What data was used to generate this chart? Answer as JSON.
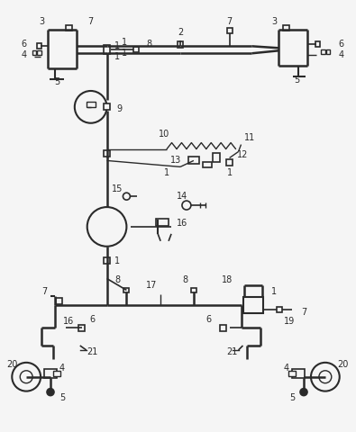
{
  "bg_color": "#f5f5f5",
  "line_color": "#2a2a2a",
  "label_color": "#111111",
  "figsize": [
    3.95,
    4.8
  ],
  "dpi": 100
}
